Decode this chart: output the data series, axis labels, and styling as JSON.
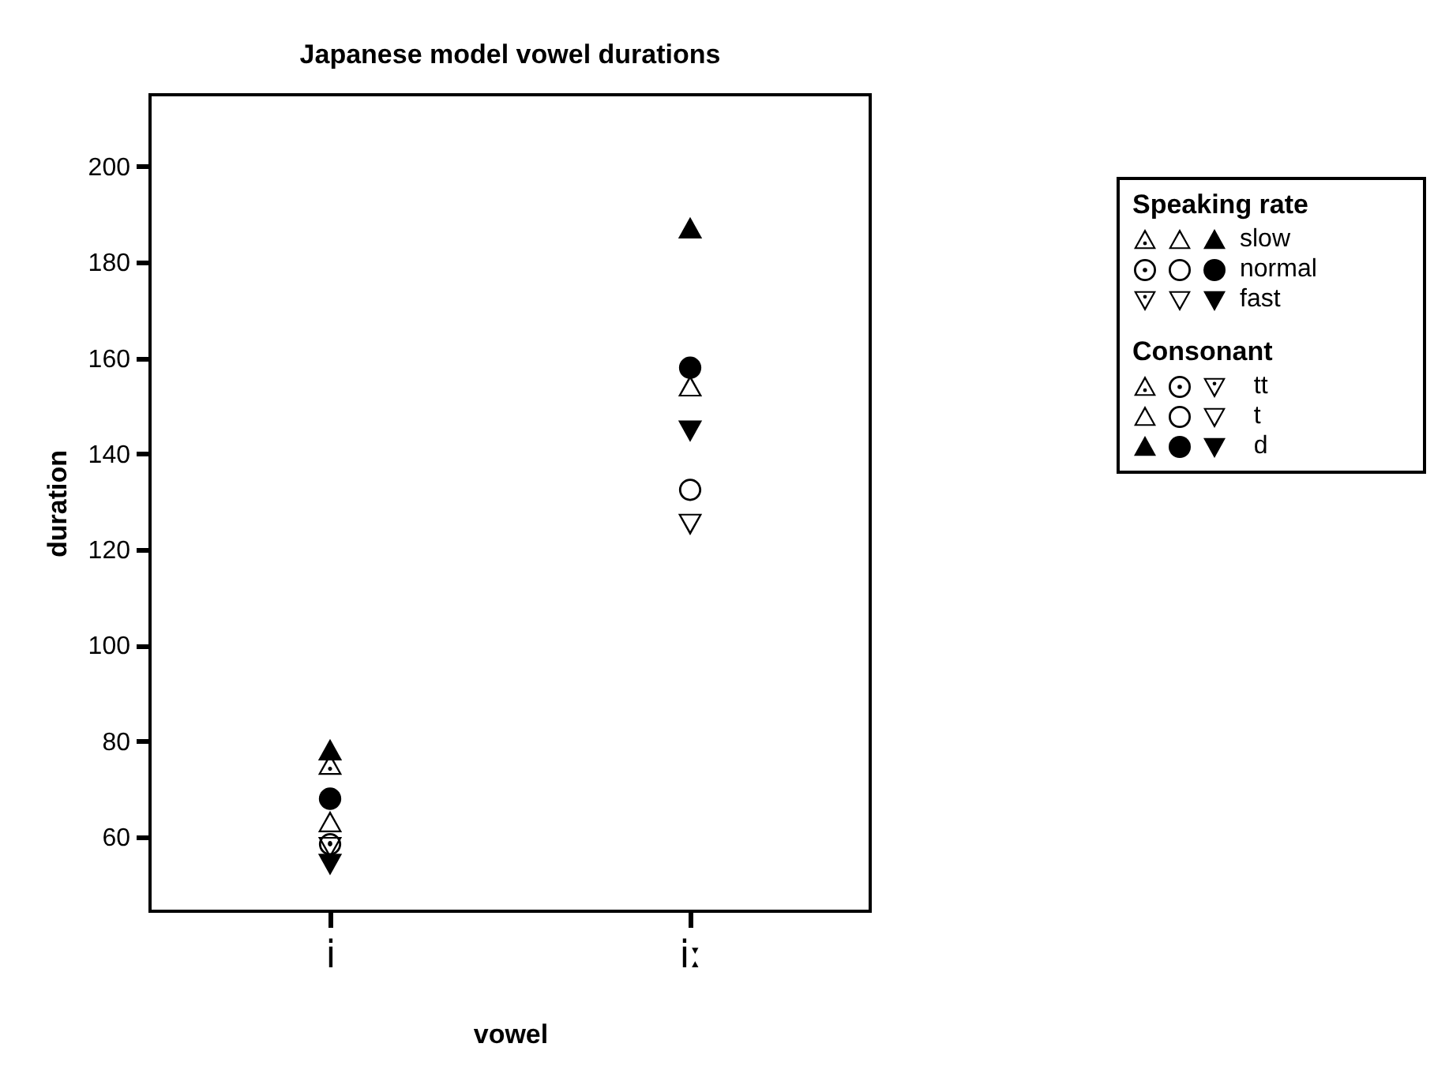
{
  "chart_data": {
    "type": "scatter",
    "title": "Japanese model vowel durations",
    "xlabel": "vowel",
    "ylabel": "duration",
    "categories": [
      "i",
      "iː"
    ],
    "ylim": [
      44.5,
      215
    ],
    "yticks": [
      60,
      80,
      100,
      120,
      140,
      160,
      180,
      200
    ],
    "legend_title": "Speaking rate",
    "annotations": [
      "slow",
      "normal",
      "fast",
      "Consonant",
      "tt",
      "t",
      "d"
    ],
    "series": [
      {
        "marker": "triangle-dotted",
        "color": "#000000",
        "values": [
          75,
          null
        ]
      },
      {
        "marker": "triangle-open",
        "color": "#000000",
        "values": [
          63,
          154
        ]
      },
      {
        "marker": "triangle",
        "color": "#000000",
        "values": [
          78,
          187
        ]
      },
      {
        "marker": "circle-dotted",
        "color": "#000000",
        "values": [
          58.5,
          null
        ]
      },
      {
        "marker": "circle-open",
        "color": "#000000",
        "values": [
          null,
          132.5
        ]
      },
      {
        "marker": "circle",
        "color": "#000000",
        "values": [
          68,
          158
        ]
      },
      {
        "marker": "triangle-down-dotted",
        "color": "#000000",
        "values": [
          58,
          null
        ]
      },
      {
        "marker": "triangle-down-open",
        "color": "#000000",
        "values": [
          null,
          125.5
        ]
      },
      {
        "marker": "triangle-down",
        "color": "#000000",
        "values": [
          54.5,
          145
        ]
      }
    ]
  }
}
